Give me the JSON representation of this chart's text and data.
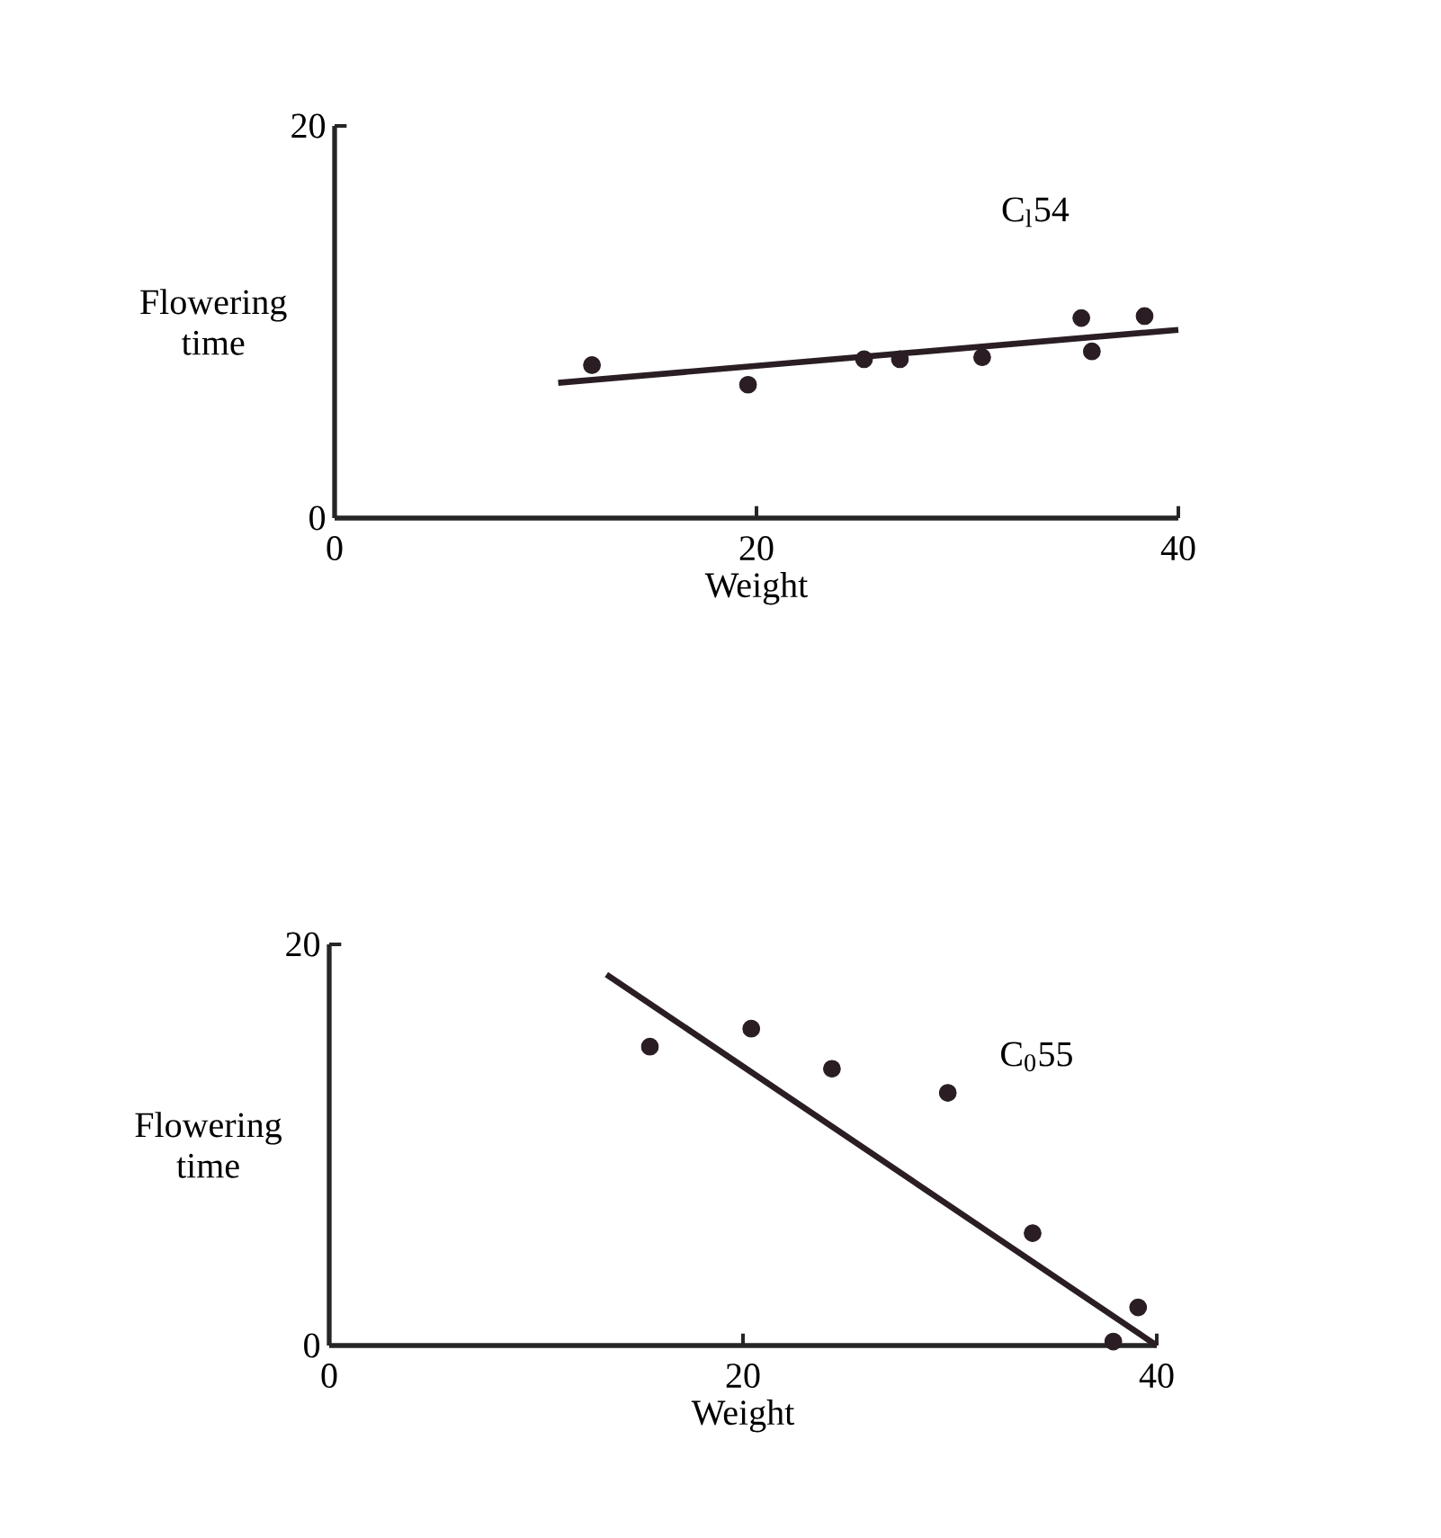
{
  "chart_data": [
    {
      "type": "scatter",
      "xlabel": "Weight",
      "ylabel": "Flowering time",
      "annotations": [
        "C$_{l}$54"
      ],
      "xlim": [
        0,
        40
      ],
      "ylim": [
        0,
        20
      ],
      "xticks": [
        0,
        20,
        40
      ],
      "yticks": [
        0,
        20
      ],
      "grid": false,
      "series": [
        {
          "color": "#2a1e24",
          "marker": "circle",
          "x": [
            12.2,
            19.6,
            25.1,
            26.8,
            30.7,
            35.4,
            35.9,
            38.4
          ],
          "values": [
            7.8,
            6.8,
            8.1,
            8.1,
            8.2,
            10.2,
            8.5,
            10.3
          ]
        },
        {
          "type": "line",
          "marker": "none",
          "color": "#2a1e24",
          "x": [
            10.6,
            40
          ],
          "values": [
            6.9,
            9.6
          ]
        }
      ]
    },
    {
      "type": "scatter",
      "xlabel": "Weight",
      "ylabel": "Flowering time",
      "annotations": [
        "C$_{0}$55"
      ],
      "xlim": [
        0,
        40
      ],
      "ylim": [
        0,
        20
      ],
      "xticks": [
        0,
        20,
        40
      ],
      "yticks": [
        0,
        20
      ],
      "grid": false,
      "series": [
        {
          "color": "#2a1e24",
          "marker": "circle",
          "x": [
            15.5,
            20.4,
            24.3,
            29.9,
            34.0,
            37.9,
            39.1
          ],
          "values": [
            14.9,
            15.8,
            13.8,
            12.6,
            5.6,
            0.2,
            1.9
          ]
        },
        {
          "type": "line",
          "marker": "none",
          "color": "#2a1e24",
          "x": [
            13.4,
            40
          ],
          "values": [
            18.5,
            0
          ]
        }
      ]
    }
  ]
}
